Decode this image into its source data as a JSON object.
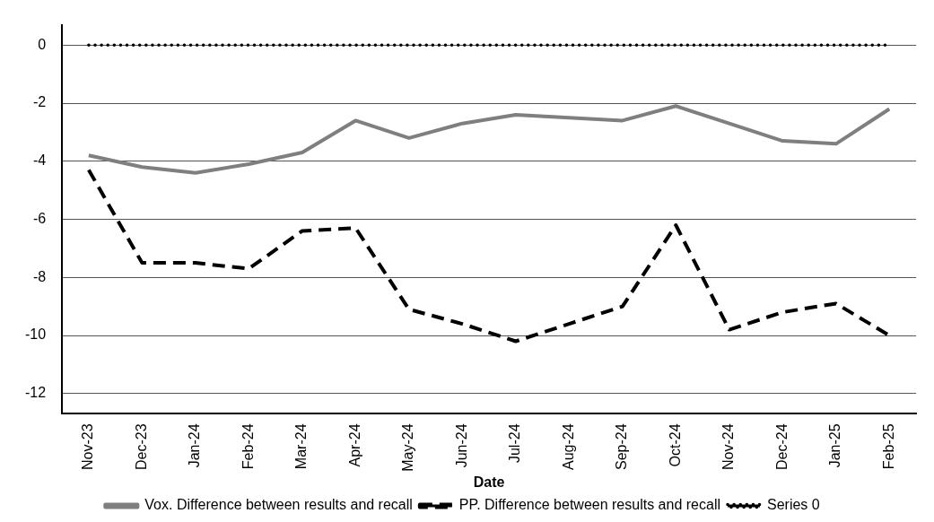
{
  "chart_data": {
    "type": "line",
    "xlabel": "Date",
    "categories": [
      "Nov-23",
      "Dec-23",
      "Jan-24",
      "Feb-24",
      "Mar-24",
      "Apr-24",
      "May-24",
      "Jun-24",
      "Jul-24",
      "Aug-24",
      "Sep-24",
      "Oct-24",
      "Nov-24",
      "Dec-24",
      "Jan-25",
      "Feb-25"
    ],
    "series": [
      {
        "name": "Vox. Difference between results and recall",
        "color": "#7f7f7f",
        "line_style": "solid",
        "values": [
          -3.8,
          -4.2,
          -4.4,
          -4.1,
          -3.7,
          -2.6,
          -3.2,
          -2.7,
          -2.4,
          -2.5,
          -2.6,
          -2.1,
          -2.7,
          -3.3,
          -3.4,
          -2.2
        ]
      },
      {
        "name": "PP. Difference between results and recall",
        "color": "#000000",
        "line_style": "dashed",
        "values": [
          -4.3,
          -7.5,
          -7.5,
          -7.7,
          -6.4,
          -6.3,
          -9.1,
          -9.6,
          -10.2,
          -9.6,
          -9.0,
          -6.2,
          -9.8,
          -9.2,
          -8.9,
          -10.0
        ]
      },
      {
        "name": "Series 0",
        "color": "#000000",
        "line_style": "dotted",
        "values": [
          0,
          0,
          0,
          0,
          0,
          0,
          0,
          0,
          0,
          0,
          0,
          0,
          0,
          0,
          0,
          0
        ]
      }
    ],
    "ylim": [
      -12.7,
      0.7
    ],
    "yticks": [
      -12,
      -10,
      -8,
      -6,
      -4,
      -2,
      0
    ],
    "grid": "y",
    "legend": "bottom",
    "marker": "none"
  }
}
